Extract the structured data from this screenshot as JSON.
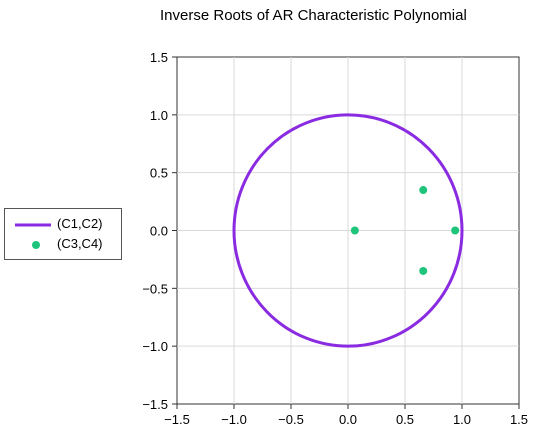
{
  "chart_data": {
    "type": "scatter",
    "title": "Inverse Roots of AR Characteristic Polynomial",
    "xlabel": "",
    "ylabel": "",
    "xlim": [
      -1.5,
      1.5
    ],
    "ylim": [
      -1.5,
      1.5
    ],
    "xticks": [
      -1.5,
      -1.0,
      -0.5,
      0.0,
      0.5,
      1.0,
      1.5
    ],
    "yticks": [
      -1.5,
      -1.0,
      -0.5,
      0.0,
      0.5,
      1.0,
      1.5
    ],
    "xtick_labels": [
      "−1.5",
      "−1.0",
      "−0.5",
      "0.0",
      "0.5",
      "1.0",
      "1.5"
    ],
    "ytick_labels": [
      "−1.5",
      "−1.0",
      "−0.5",
      "0.0",
      "0.5",
      "1.0",
      "1.5"
    ],
    "grid": true,
    "legend_position": "left",
    "series": [
      {
        "name": "(C1,C2)",
        "kind": "unit-circle",
        "radius": 1.0,
        "color": "#8a2be2"
      },
      {
        "name": "(C3,C4)",
        "kind": "points",
        "color": "#1ec47a",
        "points": [
          {
            "x": 0.06,
            "y": 0.0
          },
          {
            "x": 0.66,
            "y": 0.35
          },
          {
            "x": 0.66,
            "y": -0.35
          },
          {
            "x": 0.94,
            "y": 0.0
          }
        ]
      }
    ]
  }
}
